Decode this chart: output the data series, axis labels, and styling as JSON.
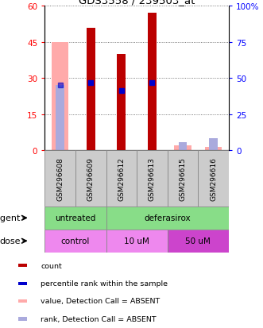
{
  "title": "GDS3558 / 239503_at",
  "samples": [
    "GSM296608",
    "GSM296609",
    "GSM296612",
    "GSM296613",
    "GSM296615",
    "GSM296616"
  ],
  "count_values": [
    0,
    51,
    40,
    57,
    0,
    0
  ],
  "rank_values": [
    0,
    28,
    25,
    28,
    0,
    0
  ],
  "absent_value_bars": [
    45,
    0,
    0,
    0,
    2,
    1.5
  ],
  "absent_rank_bars": [
    27,
    0,
    0,
    0,
    3.5,
    5
  ],
  "ylim_left": [
    0,
    60
  ],
  "ylim_right": [
    0,
    100
  ],
  "yticks_left": [
    0,
    15,
    30,
    45,
    60
  ],
  "yticks_right": [
    0,
    25,
    50,
    75,
    100
  ],
  "bar_color_present": "#BB0000",
  "bar_color_absent_value": "#FFAAAA",
  "bar_color_absent_rank": "#AAAADD",
  "blue_dot_color": "#0000CC",
  "agent_info": [
    {
      "label": "untreated",
      "xmin": -0.5,
      "xmax": 1.5,
      "color": "#88DD88"
    },
    {
      "label": "deferasirox",
      "xmin": 1.5,
      "xmax": 5.5,
      "color": "#88DD88"
    }
  ],
  "dose_info": [
    {
      "label": "control",
      "xmin": -0.5,
      "xmax": 1.5,
      "color": "#EE88EE"
    },
    {
      "label": "10 uM",
      "xmin": 1.5,
      "xmax": 3.5,
      "color": "#EE88EE"
    },
    {
      "label": "50 uM",
      "xmin": 3.5,
      "xmax": 5.5,
      "color": "#CC44CC"
    }
  ],
  "legend_items": [
    {
      "color": "#BB0000",
      "label": "count"
    },
    {
      "color": "#0000CC",
      "label": "percentile rank within the sample"
    },
    {
      "color": "#FFAAAA",
      "label": "value, Detection Call = ABSENT"
    },
    {
      "color": "#AAAADD",
      "label": "rank, Detection Call = ABSENT"
    }
  ]
}
